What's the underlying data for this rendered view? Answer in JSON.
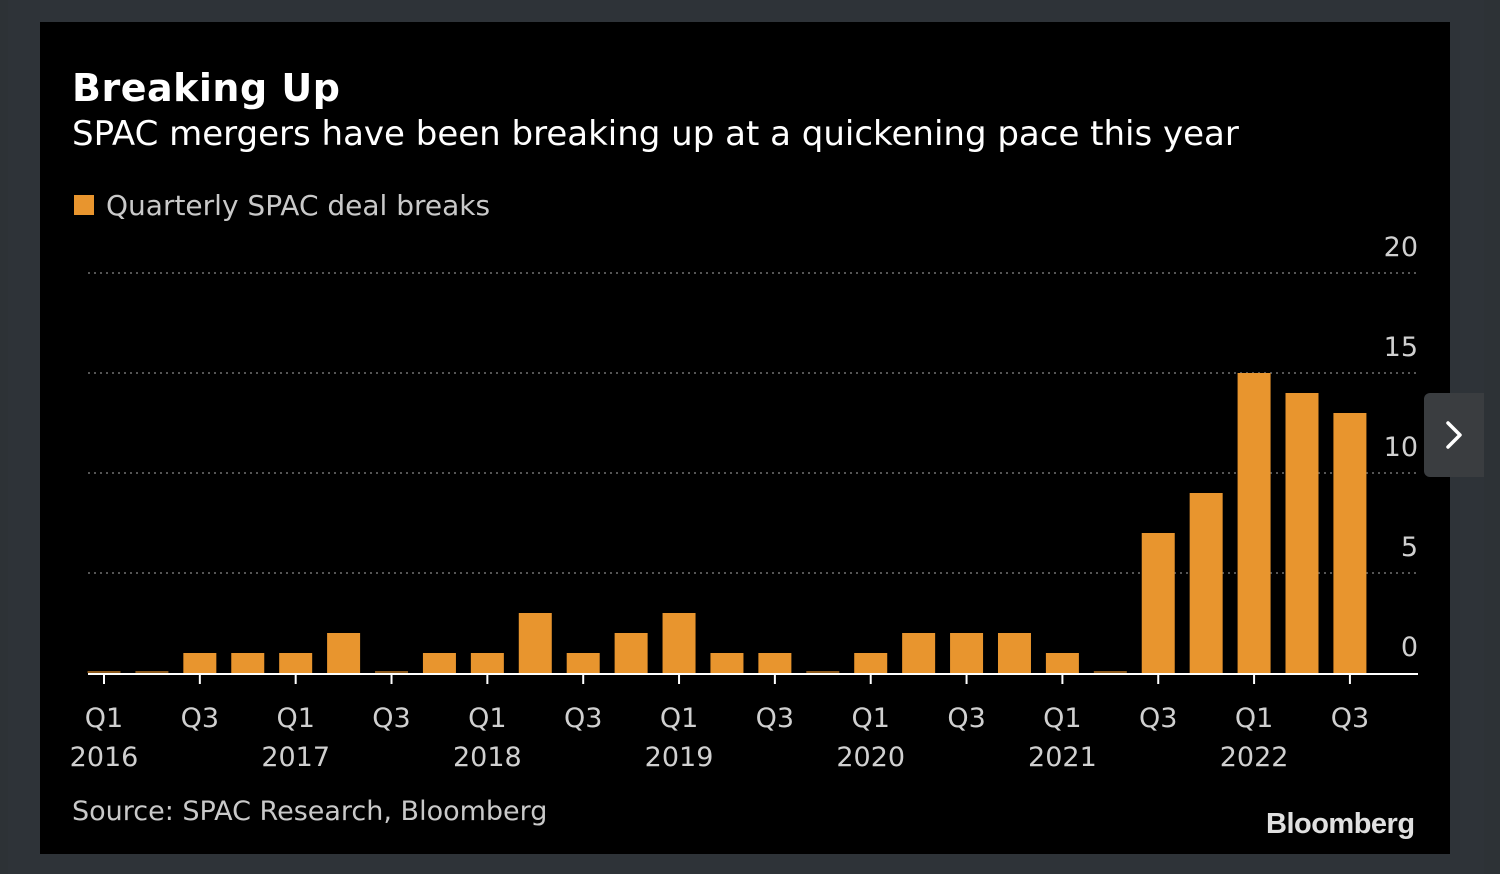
{
  "header": {
    "title": "Breaking Up",
    "subtitle": "SPAC mergers have been breaking up at a quickening pace this year"
  },
  "legend": {
    "label": "Quarterly SPAC deal breaks",
    "color": "#e8952e"
  },
  "footer": {
    "source": "Source: SPAC Research, Bloomberg",
    "logo": "Bloomberg"
  },
  "nav": {
    "next_icon": "chevron-right-icon"
  },
  "colors": {
    "background": "#000000",
    "bar": "#e8952e",
    "grid": "#555555",
    "text": "#ffffff"
  },
  "chart_data": {
    "type": "bar",
    "title": "Breaking Up",
    "subtitle": "SPAC mergers have been breaking up at a quickening pace this year",
    "categories": [
      "Q1 2016",
      "Q2 2016",
      "Q3 2016",
      "Q4 2016",
      "Q1 2017",
      "Q2 2017",
      "Q3 2017",
      "Q4 2017",
      "Q1 2018",
      "Q2 2018",
      "Q3 2018",
      "Q4 2018",
      "Q1 2019",
      "Q2 2019",
      "Q3 2019",
      "Q4 2019",
      "Q1 2020",
      "Q2 2020",
      "Q3 2020",
      "Q4 2020",
      "Q1 2021",
      "Q2 2021",
      "Q3 2021",
      "Q4 2021",
      "Q1 2022",
      "Q2 2022",
      "Q3 2022"
    ],
    "series": [
      {
        "name": "Quarterly SPAC deal breaks",
        "values": [
          0,
          0,
          1,
          1,
          1,
          2,
          0,
          1,
          1,
          3,
          1,
          2,
          3,
          1,
          1,
          0,
          1,
          2,
          2,
          2,
          1,
          0,
          7,
          9,
          15,
          14,
          13
        ]
      }
    ],
    "x_tick_labels": [
      {
        "quarter": "Q1",
        "year": "2016",
        "index": 0
      },
      {
        "quarter": "Q3",
        "year": "",
        "index": 2
      },
      {
        "quarter": "Q1",
        "year": "2017",
        "index": 4
      },
      {
        "quarter": "Q3",
        "year": "",
        "index": 6
      },
      {
        "quarter": "Q1",
        "year": "2018",
        "index": 8
      },
      {
        "quarter": "Q3",
        "year": "",
        "index": 10
      },
      {
        "quarter": "Q1",
        "year": "2019",
        "index": 12
      },
      {
        "quarter": "Q3",
        "year": "",
        "index": 14
      },
      {
        "quarter": "Q1",
        "year": "2020",
        "index": 16
      },
      {
        "quarter": "Q3",
        "year": "",
        "index": 18
      },
      {
        "quarter": "Q1",
        "year": "2021",
        "index": 20
      },
      {
        "quarter": "Q3",
        "year": "",
        "index": 22
      },
      {
        "quarter": "Q1",
        "year": "2022",
        "index": 24
      },
      {
        "quarter": "Q3",
        "year": "",
        "index": 26
      }
    ],
    "y_ticks": [
      0,
      5,
      10,
      15,
      20
    ],
    "ylim": [
      0,
      20
    ],
    "y_axis_position": "right",
    "grid": true,
    "legend_position": "top-left",
    "xlabel": "",
    "ylabel": ""
  }
}
